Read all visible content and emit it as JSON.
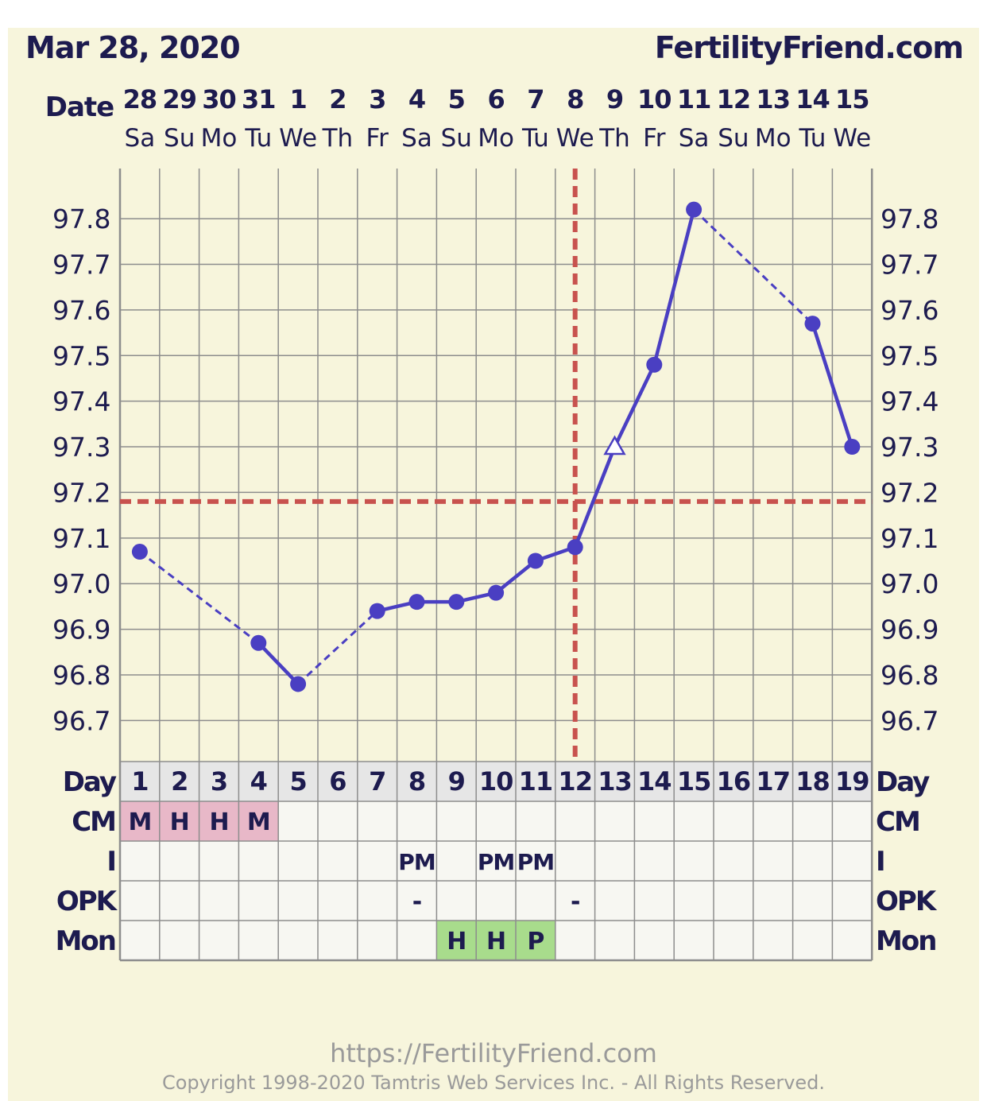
{
  "header": {
    "date_title": "Mar 28, 2020",
    "site": "FertilityFriend.com"
  },
  "footer": {
    "url": "https://FertilityFriend.com",
    "copyright": "Copyright 1998-2020 Tamtris Web Services Inc. - All Rights Reserved."
  },
  "colors": {
    "background": "#f7f5dc",
    "line": "#4a3fc2",
    "coverline": "#c8524e",
    "grid": "#8d8d8d",
    "cm_cell": "#e8b8c8",
    "mon_cell": "#a8dc8c",
    "day_row": "#e6e6e6",
    "text": "#1d1b4f"
  },
  "chart_data": {
    "type": "line",
    "title": "",
    "row_labels": {
      "date": "Date",
      "day": "Day",
      "cm": "CM",
      "i": "I",
      "opk": "OPK",
      "mon": "Mon"
    },
    "dates": [
      "28",
      "29",
      "30",
      "31",
      "1",
      "2",
      "3",
      "4",
      "5",
      "6",
      "7",
      "8",
      "9",
      "10",
      "11",
      "12",
      "13",
      "14",
      "15"
    ],
    "weekdays": [
      "Sa",
      "Su",
      "Mo",
      "Tu",
      "We",
      "Th",
      "Fr",
      "Sa",
      "Su",
      "Mo",
      "Tu",
      "We",
      "Th",
      "Fr",
      "Sa",
      "Su",
      "Mo",
      "Tu",
      "We"
    ],
    "cycle_days": [
      "1",
      "2",
      "3",
      "4",
      "5",
      "6",
      "7",
      "8",
      "9",
      "10",
      "11",
      "12",
      "13",
      "14",
      "15",
      "16",
      "17",
      "18",
      "19"
    ],
    "y_ticks": [
      "96.7",
      "96.8",
      "96.9",
      "97.0",
      "97.1",
      "97.2",
      "97.3",
      "97.4",
      "97.5",
      "97.6",
      "97.7",
      "97.8"
    ],
    "ylim": [
      96.61,
      97.91
    ],
    "temperatures": [
      97.07,
      null,
      null,
      96.87,
      96.78,
      null,
      96.94,
      96.96,
      96.96,
      96.98,
      97.05,
      97.08,
      97.3,
      97.48,
      97.82,
      null,
      null,
      97.57,
      97.3
    ],
    "point_markers": [
      "circle",
      "none",
      "none",
      "circle",
      "circle",
      "none",
      "circle",
      "circle",
      "circle",
      "circle",
      "circle",
      "circle",
      "open-triangle",
      "circle",
      "circle",
      "none",
      "none",
      "circle",
      "circle"
    ],
    "coverline_temp": 97.18,
    "ovulation_day": 12,
    "cm": [
      "M",
      "H",
      "H",
      "M",
      "",
      "",
      "",
      "",
      "",
      "",
      "",
      "",
      "",
      "",
      "",
      "",
      "",
      "",
      ""
    ],
    "intercourse": [
      "",
      "",
      "",
      "",
      "",
      "",
      "",
      "PM",
      "",
      "PM",
      "PM",
      "",
      "",
      "",
      "",
      "",
      "",
      "",
      ""
    ],
    "opk": [
      "",
      "",
      "",
      "",
      "",
      "",
      "",
      "-",
      "",
      "",
      "",
      "-",
      "",
      "",
      "",
      "",
      "",
      "",
      ""
    ],
    "monitor": [
      "",
      "",
      "",
      "",
      "",
      "",
      "",
      "",
      "H",
      "H",
      "P",
      "",
      "",
      "",
      "",
      "",
      "",
      "",
      ""
    ]
  }
}
